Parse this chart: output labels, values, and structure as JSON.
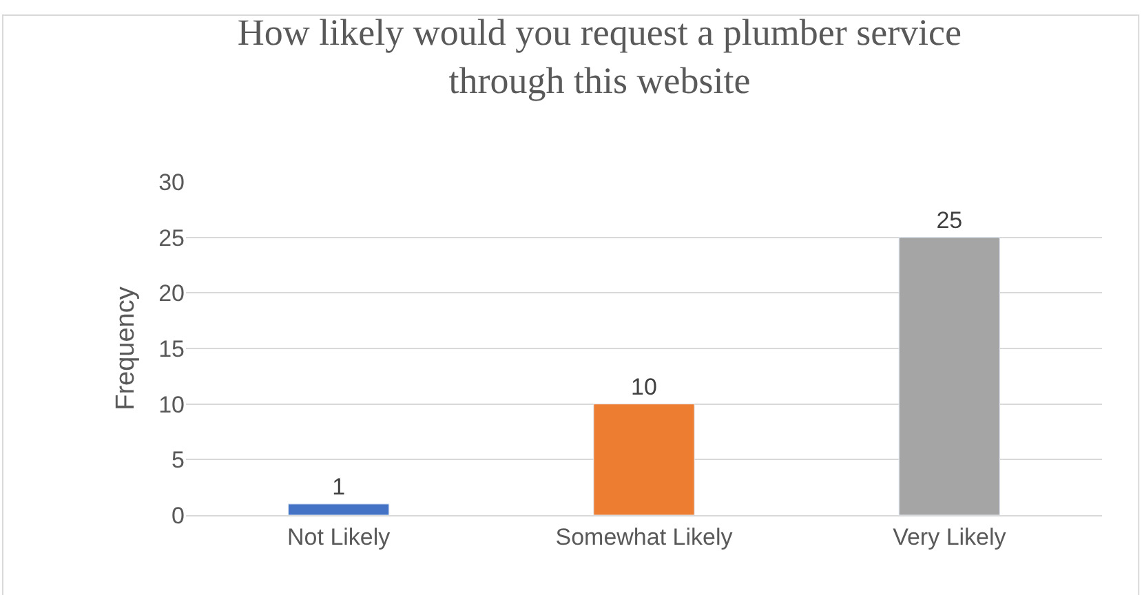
{
  "chart_data": {
    "type": "bar",
    "title": "How likely would you request a plumber service\nthrough this website",
    "ylabel": "Frequency",
    "categories": [
      "Not Likely",
      "Somewhat Likely",
      "Very Likely"
    ],
    "values": [
      1,
      10,
      25
    ],
    "colors": [
      "#4472c4",
      "#ed7d31",
      "#a5a5a5"
    ],
    "ylim": [
      0,
      30
    ],
    "yticks": [
      0,
      5,
      10,
      15,
      20,
      25,
      30
    ],
    "grid": "y",
    "data_labels": true,
    "legend": false
  }
}
